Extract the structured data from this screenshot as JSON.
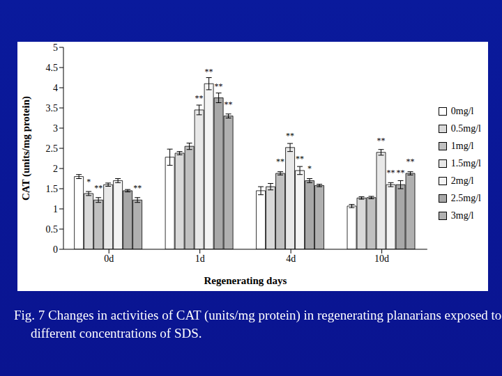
{
  "chart_data": {
    "type": "bar",
    "title": "Fig. 7  Changes in activities of CAT (units/mg protein) in regenerating planarians exposed to different concentrations of SDS.",
    "x_label": "Regenerating days",
    "y_label": "CAT (units/mg protein)",
    "categories": [
      "0d",
      "1d",
      "4d",
      "10d"
    ],
    "ylim": [
      0,
      5
    ],
    "yticks": [
      0,
      0.5,
      1,
      1.5,
      2,
      2.5,
      3,
      3.5,
      4,
      4.5,
      5
    ],
    "grid": false,
    "legend": "right",
    "series": [
      {
        "name": "0mg/l",
        "color": "#ffffff",
        "values": [
          1.8,
          2.28,
          1.45,
          1.07
        ],
        "errors": [
          0.05,
          0.2,
          0.1,
          0.04
        ],
        "significance": [
          null,
          null,
          null,
          null
        ]
      },
      {
        "name": "0.5mg/l",
        "color": "#d9d9d9",
        "values": [
          1.38,
          2.38,
          1.55,
          1.27
        ],
        "errors": [
          0.05,
          0.04,
          0.08,
          0.03
        ],
        "significance": [
          "*",
          null,
          null,
          null
        ]
      },
      {
        "name": "1mg/l",
        "color": "#c0c0c0",
        "values": [
          1.22,
          2.55,
          1.88,
          1.28
        ],
        "errors": [
          0.06,
          0.08,
          0.04,
          0.03
        ],
        "significance": [
          "**",
          null,
          "**",
          null
        ]
      },
      {
        "name": "1.5mg/l",
        "color": "#e8e8e8",
        "values": [
          1.6,
          3.45,
          2.52,
          2.4
        ],
        "errors": [
          0.04,
          0.12,
          0.1,
          0.07
        ],
        "significance": [
          null,
          "**",
          "**",
          "**"
        ]
      },
      {
        "name": "2mg/l",
        "color": "#f4f4f4",
        "values": [
          1.7,
          4.1,
          1.95,
          1.6
        ],
        "errors": [
          0.05,
          0.15,
          0.1,
          0.05
        ],
        "significance": [
          null,
          "**",
          "**",
          "**"
        ]
      },
      {
        "name": "2.5mg/l",
        "color": "#a8a8a8",
        "values": [
          1.45,
          3.75,
          1.7,
          1.6
        ],
        "errors": [
          0.03,
          0.12,
          0.05,
          0.1
        ],
        "significance": [
          null,
          "**",
          "*",
          "**"
        ]
      },
      {
        "name": "3mg/l",
        "color": "#b0b0b0",
        "values": [
          1.22,
          3.3,
          1.58,
          1.88
        ],
        "errors": [
          0.06,
          0.05,
          0.03,
          0.04
        ],
        "significance": [
          "**",
          "**",
          null,
          "**"
        ]
      }
    ]
  }
}
